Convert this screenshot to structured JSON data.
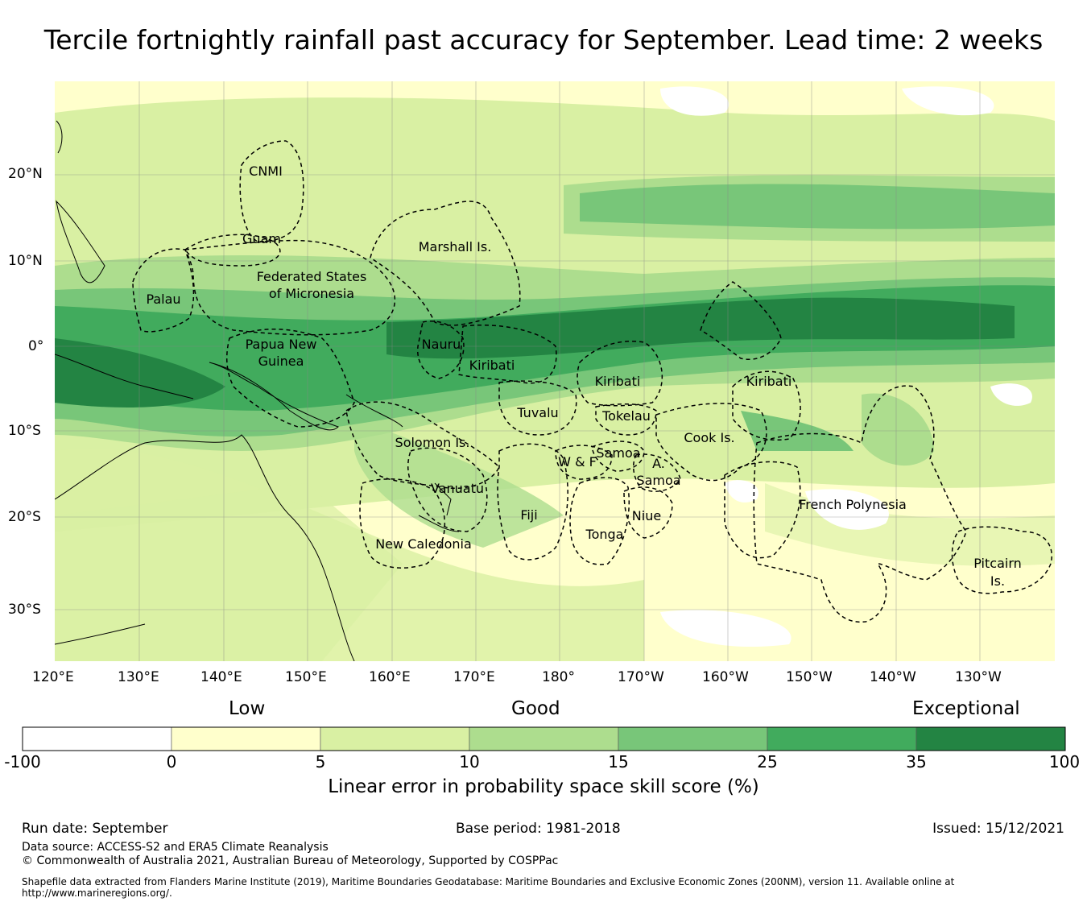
{
  "title": "Tercile fortnightly rainfall past accuracy for September. Lead time: 2 weeks",
  "map": {
    "lat_labels": [
      "20°N",
      "10°N",
      "0°",
      "10°S",
      "20°S",
      "30°S"
    ],
    "lon_labels": [
      "120°E",
      "130°E",
      "140°E",
      "150°E",
      "160°E",
      "170°E",
      "180°",
      "170°W",
      "160°W",
      "150°W",
      "140°W",
      "130°W"
    ],
    "regions": [
      {
        "name": "CNMI"
      },
      {
        "name": "Guam"
      },
      {
        "name": "Marshall Is."
      },
      {
        "name": "Federated States"
      },
      {
        "name": "of Micronesia"
      },
      {
        "name": "Palau"
      },
      {
        "name": "Papua New"
      },
      {
        "name": "Guinea"
      },
      {
        "name": "Nauru"
      },
      {
        "name": "Kiribati"
      },
      {
        "name": "Kiribati"
      },
      {
        "name": "Kiribati"
      },
      {
        "name": "Tuvalu"
      },
      {
        "name": "Tokelau"
      },
      {
        "name": "Cook Is."
      },
      {
        "name": "Solomon Is."
      },
      {
        "name": "Samoa"
      },
      {
        "name": "W & F"
      },
      {
        "name": "A."
      },
      {
        "name": "Samoa"
      },
      {
        "name": "Vanuatu"
      },
      {
        "name": "Fiji"
      },
      {
        "name": "Niue"
      },
      {
        "name": "Tonga"
      },
      {
        "name": "French Polynesia"
      },
      {
        "name": "New Caledonia"
      },
      {
        "name": "Pitcairn"
      },
      {
        "name": "Is."
      }
    ]
  },
  "colorbar": {
    "categories": [
      "Low",
      "Good",
      "Exceptional"
    ],
    "ticks": [
      "-100",
      "0",
      "5",
      "10",
      "15",
      "25",
      "35",
      "100"
    ],
    "colors": [
      "#ffffff",
      "#ffffcc",
      "#d9f0a3",
      "#addd8e",
      "#78c679",
      "#41ab5d",
      "#238443"
    ],
    "label": "Linear error in probability space skill score (%)"
  },
  "footer": {
    "run_date": "Run date: September",
    "base_period": "Base period: 1981-2018",
    "issued": "Issued: 15/12/2021",
    "data_source": "Data source: ACCESS-S2 and ERA5 Climate Reanalysis",
    "copyright": "© Commonwealth of Australia 2021, Australian Bureau of Meteorology, Supported by COSPPac",
    "shapefile": "Shapefile data extracted from Flanders Marine Institute (2019), Maritime Boundaries Geodatabase: Maritime Boundaries and Exclusive Economic Zones (200NM), version 11. Available online at http://www.marineregions.org/."
  }
}
